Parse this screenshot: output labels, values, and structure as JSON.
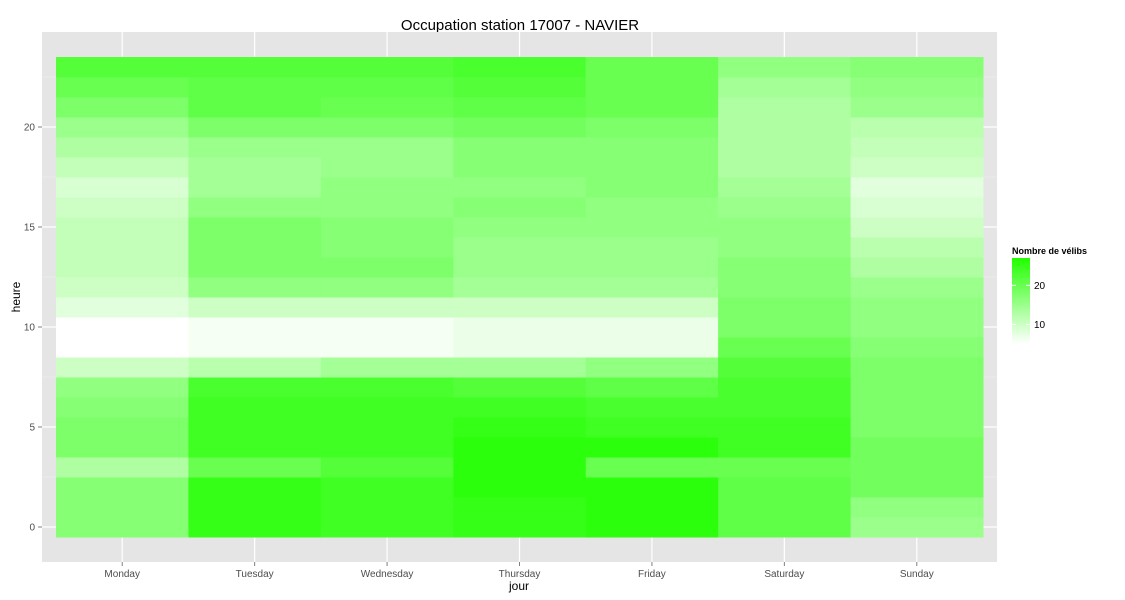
{
  "chart_data": {
    "type": "heatmap",
    "title": "Occupation station 17007 - NAVIER",
    "xlabel": "jour",
    "ylabel": "heure",
    "categories": [
      "Monday",
      "Tuesday",
      "Wednesday",
      "Thursday",
      "Friday",
      "Saturday",
      "Sunday"
    ],
    "hours": [
      0,
      1,
      2,
      3,
      4,
      5,
      6,
      7,
      8,
      9,
      10,
      11,
      12,
      13,
      14,
      15,
      16,
      17,
      18,
      19,
      20,
      21,
      22,
      23
    ],
    "yticks": [
      0,
      5,
      10,
      15,
      20
    ],
    "ylim": [
      -0.5,
      23.5
    ],
    "grid": true,
    "legend": {
      "title": "Nombre de vélibs",
      "ticks": [
        10,
        20
      ],
      "range": [
        5,
        27
      ],
      "low_color": "#ffffff",
      "high_color": "#22ff00",
      "position": "right"
    },
    "values": [
      [
        17,
        25,
        24,
        25,
        26,
        21,
        15
      ],
      [
        17,
        25,
        24,
        25,
        26,
        21,
        16
      ],
      [
        17,
        25,
        24,
        26,
        26,
        21,
        19
      ],
      [
        13,
        20,
        22,
        26,
        20,
        20,
        19
      ],
      [
        18,
        24,
        24,
        26,
        26,
        24,
        19
      ],
      [
        18,
        24,
        24,
        25,
        24,
        24,
        18
      ],
      [
        17,
        24,
        24,
        24,
        23,
        23,
        18
      ],
      [
        16,
        23,
        23,
        22,
        21,
        23,
        18
      ],
      [
        10,
        12,
        14,
        14,
        16,
        22,
        18
      ],
      [
        5,
        6,
        6,
        7,
        7,
        20,
        17
      ],
      [
        5,
        6,
        6,
        7,
        7,
        18,
        16
      ],
      [
        8,
        10,
        10,
        10,
        10,
        18,
        16
      ],
      [
        10,
        16,
        16,
        14,
        14,
        17,
        15
      ],
      [
        11,
        18,
        18,
        15,
        15,
        17,
        13
      ],
      [
        11,
        18,
        17,
        15,
        15,
        16,
        12
      ],
      [
        11,
        18,
        17,
        16,
        16,
        16,
        10
      ],
      [
        10,
        16,
        16,
        17,
        16,
        15,
        9
      ],
      [
        9,
        14,
        16,
        16,
        17,
        14,
        8
      ],
      [
        11,
        14,
        15,
        17,
        17,
        13,
        10
      ],
      [
        13,
        15,
        15,
        17,
        17,
        13,
        11
      ],
      [
        15,
        18,
        18,
        19,
        18,
        13,
        12
      ],
      [
        18,
        21,
        20,
        21,
        20,
        13,
        15
      ],
      [
        20,
        21,
        21,
        22,
        20,
        14,
        16
      ],
      [
        22,
        22,
        22,
        23,
        20,
        16,
        17
      ]
    ]
  }
}
